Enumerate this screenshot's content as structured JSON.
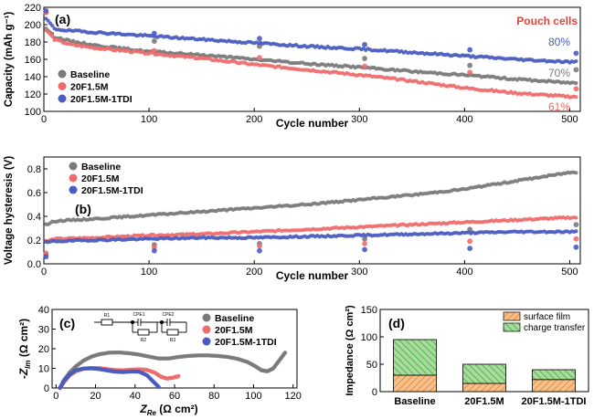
{
  "colors": {
    "baseline": "#7a7a7a",
    "f15m": "#ef6b6b",
    "tdi": "#4a5cc0",
    "pouch_label": "#e8403a",
    "film_fill": "#f6c08d",
    "film_stroke": "#e07b1f",
    "ct_fill": "#a6dd9b",
    "ct_stroke": "#3f9a3c"
  },
  "chart_data": [
    {
      "panel": "(a)",
      "type": "scatter",
      "title": "",
      "annotation": "Pouch cells",
      "xlabel": "Cycle number",
      "ylabel": "Capacity (mAh g⁻¹)",
      "xlim": [
        0,
        510
      ],
      "ylim": [
        100,
        220
      ],
      "xticks": [
        0,
        100,
        200,
        300,
        400,
        500
      ],
      "yticks": [
        100,
        120,
        140,
        160,
        180,
        200,
        220
      ],
      "legend": [
        "Baseline",
        "20F1.5M",
        "20F1.5M-1TDI"
      ],
      "retention_labels": [
        {
          "series": "20F1.5M-1TDI",
          "text": "80%"
        },
        {
          "series": "Baseline",
          "text": "70%"
        },
        {
          "series": "20F1.5M",
          "text": "61%"
        }
      ],
      "series": [
        {
          "name": "Baseline",
          "x": [
            3,
            10,
            25,
            50,
            100,
            150,
            200,
            250,
            300,
            350,
            400,
            450,
            500
          ],
          "y": [
            195,
            186,
            181,
            176,
            169,
            165,
            160,
            155,
            151,
            146,
            142,
            137,
            133
          ],
          "checkup_x": [
            2,
            105,
            205,
            305,
            405,
            506
          ],
          "checkup_y": [
            214,
            181,
            175,
            161,
            153,
            148
          ]
        },
        {
          "name": "20F1.5M",
          "x": [
            3,
            10,
            25,
            50,
            100,
            150,
            200,
            250,
            300,
            350,
            400,
            450,
            500
          ],
          "y": [
            193,
            183,
            177,
            173,
            167,
            161,
            154,
            148,
            142,
            135,
            127,
            121,
            117
          ],
          "checkup_x": [
            2,
            105,
            205,
            305,
            405,
            506
          ],
          "checkup_y": [
            214,
            170,
            162,
            152,
            145,
            126
          ]
        },
        {
          "name": "20F1.5M-1TDI",
          "x": [
            3,
            10,
            25,
            50,
            100,
            150,
            200,
            250,
            300,
            350,
            400,
            450,
            500
          ],
          "y": [
            206,
            195,
            193,
            191,
            187,
            183,
            179,
            175,
            172,
            168,
            164,
            160,
            157
          ],
          "checkup_x": [
            2,
            105,
            205,
            305,
            405,
            506
          ],
          "checkup_y": [
            216,
            190,
            184,
            177,
            171,
            167
          ]
        }
      ]
    },
    {
      "panel": "(b)",
      "type": "scatter",
      "xlabel": "Cycle number",
      "ylabel": "Voltage hysteresis (V)",
      "xlim": [
        0,
        510
      ],
      "ylim": [
        0,
        0.9
      ],
      "xticks": [
        0,
        100,
        200,
        300,
        400,
        500
      ],
      "yticks": [
        0.0,
        0.2,
        0.4,
        0.6,
        0.8
      ],
      "legend": [
        "Baseline",
        "20F1.5M",
        "20F1.5M-1TDI"
      ],
      "series": [
        {
          "name": "Baseline",
          "x": [
            3,
            10,
            50,
            100,
            150,
            200,
            250,
            300,
            350,
            400,
            450,
            500
          ],
          "y": [
            0.33,
            0.36,
            0.38,
            0.41,
            0.44,
            0.47,
            0.5,
            0.54,
            0.58,
            0.63,
            0.7,
            0.77
          ],
          "checkup_x": [
            2,
            105,
            205,
            305,
            405,
            506
          ],
          "checkup_y": [
            0.08,
            0.16,
            0.17,
            0.21,
            0.29,
            0.33
          ]
        },
        {
          "name": "20F1.5M",
          "x": [
            3,
            10,
            50,
            100,
            150,
            200,
            250,
            300,
            350,
            400,
            450,
            500
          ],
          "y": [
            0.19,
            0.21,
            0.22,
            0.24,
            0.25,
            0.27,
            0.29,
            0.31,
            0.33,
            0.35,
            0.37,
            0.39
          ],
          "checkup_x": [
            2,
            105,
            205,
            305,
            405,
            506
          ],
          "checkup_y": [
            0.09,
            0.14,
            0.15,
            0.17,
            0.19,
            0.21
          ]
        },
        {
          "name": "20F1.5M-1TDI",
          "x": [
            3,
            10,
            50,
            100,
            150,
            200,
            250,
            300,
            350,
            400,
            450,
            500
          ],
          "y": [
            0.18,
            0.19,
            0.2,
            0.21,
            0.22,
            0.22,
            0.23,
            0.24,
            0.25,
            0.26,
            0.27,
            0.27
          ],
          "checkup_x": [
            2,
            105,
            205,
            305,
            405,
            506
          ],
          "checkup_y": [
            0.06,
            0.11,
            0.11,
            0.12,
            0.13,
            0.14
          ]
        }
      ]
    },
    {
      "panel": "(c)",
      "type": "scatter",
      "xlabel": "Z_Re (Ω cm²)",
      "ylabel": "-Z_Im (Ω cm²)",
      "xlabel_symbol": "Z",
      "xlabel_sub": "Re",
      "xlabel_unit": " (Ω cm²)",
      "ylabel_symbol": "-Z",
      "ylabel_sub": "Im",
      "ylabel_unit": " (Ω cm²)",
      "xlim": [
        -2,
        122
      ],
      "ylim": [
        0,
        40
      ],
      "xticks": [
        0,
        20,
        40,
        60,
        80,
        100,
        120
      ],
      "yticks": [
        0,
        10,
        20,
        30,
        40
      ],
      "legend": [
        "Baseline",
        "20F1.5M",
        "20F1.5M-1TDI"
      ],
      "circuit_labels": [
        "R1",
        "CPE1",
        "R2",
        "CPE2",
        "R3"
      ],
      "series": [
        {
          "name": "Baseline",
          "x": [
            2,
            4,
            7,
            10,
            14,
            18,
            22,
            27,
            32,
            37,
            42,
            47,
            52,
            57,
            62,
            67,
            72,
            77,
            82,
            87,
            92,
            97,
            101,
            104,
            107,
            110,
            113,
            116
          ],
          "y": [
            0,
            4,
            8,
            11,
            14,
            16,
            17.2,
            18,
            18.1,
            17.7,
            17,
            16,
            15,
            15,
            15.8,
            16.3,
            16.6,
            16.6,
            16.3,
            15.8,
            14.8,
            13.2,
            11,
            9,
            8.5,
            10,
            14,
            18
          ]
        },
        {
          "name": "20F1.5M",
          "x": [
            2,
            4,
            7,
            10,
            14,
            18,
            22,
            26,
            30,
            34,
            38,
            42,
            46,
            50,
            53,
            56,
            59,
            62
          ],
          "y": [
            0,
            3,
            6.5,
            8.5,
            9.8,
            10.2,
            10.1,
            9.6,
            9.1,
            9,
            9.3,
            9.5,
            9.2,
            7.8,
            5.8,
            4.8,
            5.2,
            6
          ]
        },
        {
          "name": "20F1.5M-1TDI",
          "x": [
            2,
            4,
            7,
            10,
            14,
            18,
            22,
            26,
            30,
            34,
            38,
            42,
            46,
            49,
            52
          ],
          "y": [
            0,
            3.5,
            7,
            9,
            9.9,
            10,
            9.6,
            8.9,
            8.3,
            8.1,
            8.4,
            8.3,
            6.5,
            3.5,
            0.5
          ]
        }
      ]
    },
    {
      "panel": "(d)",
      "type": "bar",
      "stacked": true,
      "ylabel": "Impedance (Ω cm²)",
      "ylim": [
        0,
        150
      ],
      "yticks": [
        0,
        50,
        100,
        150
      ],
      "categories": [
        "Baseline",
        "20F1.5M",
        "20F1.5M-1TDI"
      ],
      "legend": [
        "surface film",
        "charge transfer"
      ],
      "series": [
        {
          "name": "surface film",
          "values": [
            30,
            15,
            22
          ]
        },
        {
          "name": "charge transfer",
          "values": [
            65,
            35,
            18
          ]
        }
      ]
    }
  ]
}
